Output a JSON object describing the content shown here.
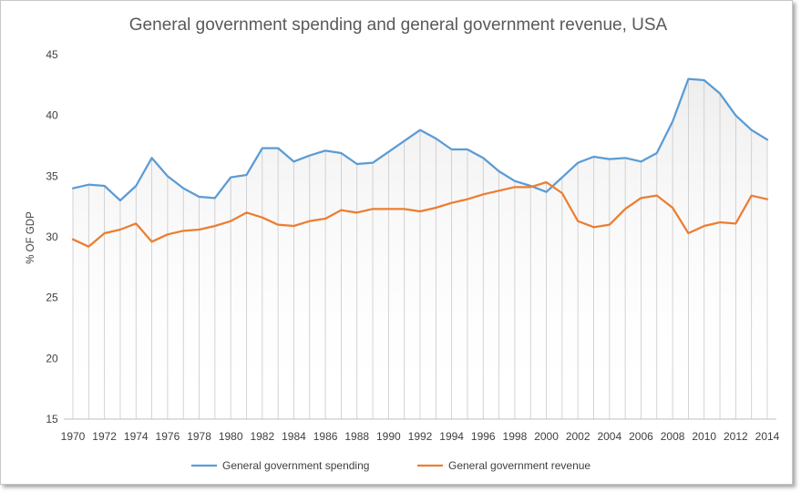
{
  "chart_data": {
    "type": "line",
    "title": "General government spending and general government revenue, USA",
    "xlabel": "",
    "ylabel": "% OF GDP",
    "ylim": [
      15,
      45
    ],
    "yticks": [
      15,
      20,
      25,
      30,
      35,
      40,
      45
    ],
    "x": [
      1970,
      1971,
      1972,
      1973,
      1974,
      1975,
      1976,
      1977,
      1978,
      1979,
      1980,
      1981,
      1982,
      1983,
      1984,
      1985,
      1986,
      1987,
      1988,
      1989,
      1990,
      1991,
      1992,
      1993,
      1994,
      1995,
      1996,
      1997,
      1998,
      1999,
      2000,
      2001,
      2002,
      2003,
      2004,
      2005,
      2006,
      2007,
      2008,
      2009,
      2010,
      2011,
      2012,
      2013,
      2014
    ],
    "xtick_labels": [
      "1970",
      "1972",
      "1974",
      "1976",
      "1978",
      "1980",
      "1982",
      "1984",
      "1986",
      "1988",
      "1990",
      "1992",
      "1994",
      "1996",
      "1998",
      "2000",
      "2002",
      "2004",
      "2006",
      "2008",
      "2010",
      "2012",
      "2014"
    ],
    "series": [
      {
        "name": "General government spending",
        "color": "#5b9bd5",
        "values": [
          34.0,
          34.3,
          34.2,
          33.0,
          34.2,
          36.5,
          35.0,
          34.0,
          33.3,
          33.2,
          34.9,
          35.1,
          37.3,
          37.3,
          36.2,
          36.7,
          37.1,
          36.9,
          36.0,
          36.1,
          37.0,
          37.9,
          38.8,
          38.1,
          37.2,
          37.2,
          36.5,
          35.4,
          34.6,
          34.2,
          33.7,
          34.9,
          36.1,
          36.6,
          36.4,
          36.5,
          36.2,
          36.9,
          39.5,
          43.0,
          42.9,
          41.8,
          40.0,
          38.8,
          38.0
        ]
      },
      {
        "name": "General government revenue",
        "color": "#ed7d31",
        "values": [
          29.8,
          29.2,
          30.3,
          30.6,
          31.1,
          29.6,
          30.2,
          30.5,
          30.6,
          30.9,
          31.3,
          32.0,
          31.6,
          31.0,
          30.9,
          31.3,
          31.5,
          32.2,
          32.0,
          32.3,
          32.3,
          32.3,
          32.1,
          32.4,
          32.8,
          33.1,
          33.5,
          33.8,
          34.1,
          34.1,
          34.5,
          33.6,
          31.3,
          30.8,
          31.0,
          32.3,
          33.2,
          33.4,
          32.4,
          30.3,
          30.9,
          31.2,
          31.1,
          33.4,
          33.1
        ]
      }
    ],
    "legend_position": "bottom",
    "grid": "vertical drop lines with gradient fill"
  }
}
